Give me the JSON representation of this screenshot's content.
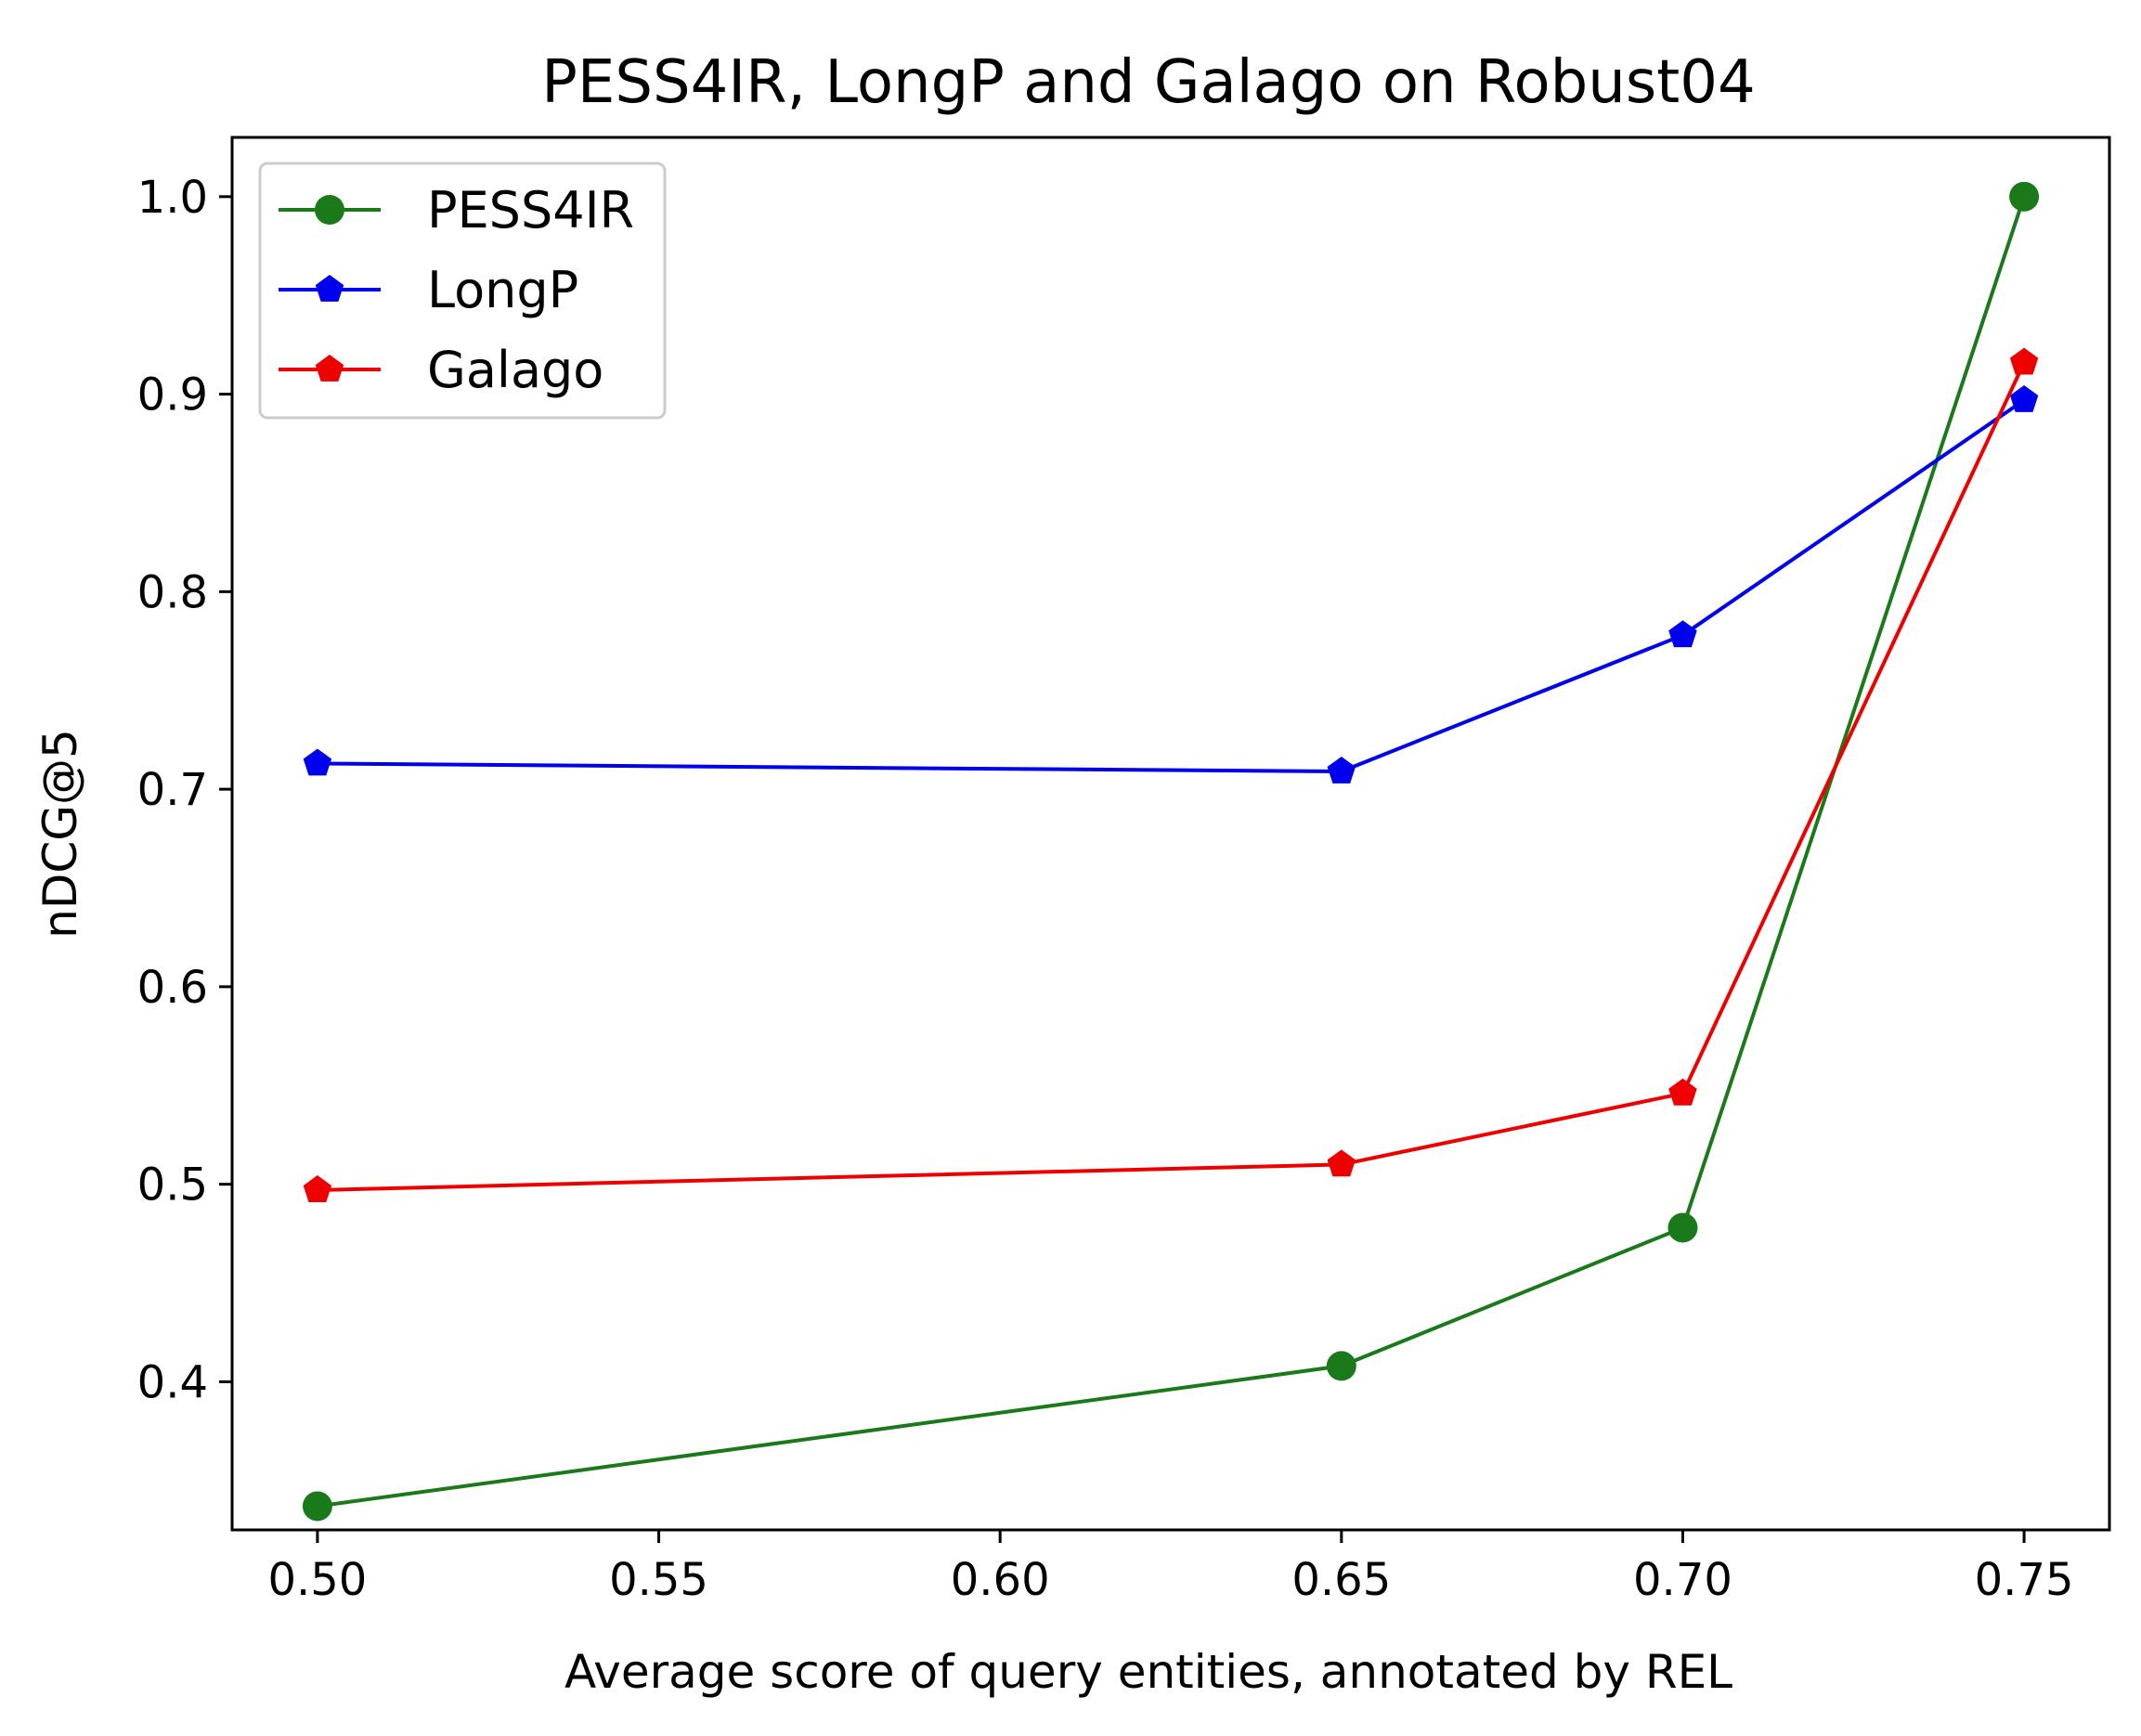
{
  "chart_data": {
    "type": "line",
    "title": "PESS4IR, LongP and Galago on Robust04",
    "xlabel": "Average score of query entities, annotated by REL",
    "ylabel": "nDCG@5",
    "x": [
      0.5,
      0.65,
      0.7,
      0.75
    ],
    "xlim": [
      0.4875,
      0.7625
    ],
    "ylim": [
      0.325,
      1.03
    ],
    "xticks": [
      "0.50",
      "0.55",
      "0.60",
      "0.65",
      "0.70",
      "0.75"
    ],
    "yticks": [
      "0.4",
      "0.5",
      "0.6",
      "0.7",
      "0.8",
      "0.9",
      "1.0"
    ],
    "grid": false,
    "legend_position": "upper-left",
    "series": [
      {
        "name": "PESS4IR",
        "color": "#1a7a1a",
        "marker": "circle",
        "values": [
          0.337,
          0.408,
          0.478,
          1.0
        ]
      },
      {
        "name": "LongP",
        "color": "#0000ee",
        "marker": "pentagon",
        "values": [
          0.713,
          0.709,
          0.778,
          0.897
        ]
      },
      {
        "name": "Galago",
        "color": "#ee0000",
        "marker": "pentagon",
        "values": [
          0.497,
          0.51,
          0.546,
          0.916
        ]
      }
    ]
  }
}
